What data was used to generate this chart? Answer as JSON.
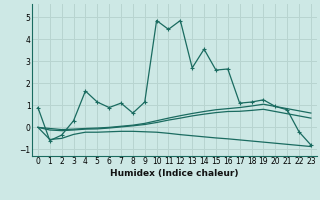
{
  "xlabel": "Humidex (Indice chaleur)",
  "bg_color": "#cde8e5",
  "grid_color": "#b8d4d0",
  "line_color": "#1a6b60",
  "xlim": [
    -0.5,
    23.5
  ],
  "ylim": [
    -1.3,
    5.6
  ],
  "xticks": [
    0,
    1,
    2,
    3,
    4,
    5,
    6,
    7,
    8,
    9,
    10,
    11,
    12,
    13,
    14,
    15,
    16,
    17,
    18,
    19,
    20,
    21,
    22,
    23
  ],
  "yticks": [
    -1,
    0,
    1,
    2,
    3,
    4,
    5
  ],
  "series1_x": [
    0,
    1,
    2,
    3,
    4,
    5,
    6,
    7,
    8,
    9,
    10,
    11,
    12,
    13,
    14,
    15,
    16,
    17,
    18,
    19,
    20,
    21,
    22,
    23
  ],
  "series1_y": [
    0.9,
    -0.6,
    -0.35,
    0.3,
    1.65,
    1.15,
    0.9,
    1.1,
    0.65,
    1.15,
    4.85,
    4.45,
    4.85,
    2.7,
    3.55,
    2.6,
    2.65,
    1.1,
    1.15,
    1.25,
    0.95,
    0.8,
    -0.2,
    -0.8
  ],
  "series2_x": [
    0,
    1,
    2,
    3,
    4,
    5,
    6,
    7,
    8,
    9,
    10,
    11,
    12,
    13,
    14,
    15,
    16,
    17,
    18,
    19,
    20,
    21,
    22,
    23
  ],
  "series2_y": [
    0.0,
    -0.05,
    -0.1,
    -0.08,
    -0.05,
    -0.03,
    0.0,
    0.05,
    0.1,
    0.18,
    0.3,
    0.42,
    0.53,
    0.63,
    0.72,
    0.8,
    0.85,
    0.9,
    0.97,
    1.05,
    0.95,
    0.85,
    0.75,
    0.65
  ],
  "series3_x": [
    0,
    1,
    2,
    3,
    4,
    5,
    6,
    7,
    8,
    9,
    10,
    11,
    12,
    13,
    14,
    15,
    16,
    17,
    18,
    19,
    20,
    21,
    22,
    23
  ],
  "series3_y": [
    0.0,
    -0.12,
    -0.15,
    -0.12,
    -0.08,
    -0.07,
    -0.03,
    0.02,
    0.07,
    0.13,
    0.22,
    0.33,
    0.42,
    0.52,
    0.6,
    0.67,
    0.72,
    0.73,
    0.77,
    0.82,
    0.72,
    0.62,
    0.52,
    0.42
  ],
  "series4_x": [
    0,
    1,
    2,
    3,
    4,
    5,
    6,
    7,
    8,
    9,
    10,
    11,
    12,
    13,
    14,
    15,
    16,
    17,
    18,
    19,
    20,
    21,
    22,
    23
  ],
  "series4_y": [
    0.0,
    -0.55,
    -0.5,
    -0.32,
    -0.22,
    -0.22,
    -0.2,
    -0.18,
    -0.18,
    -0.2,
    -0.22,
    -0.27,
    -0.33,
    -0.38,
    -0.43,
    -0.48,
    -0.52,
    -0.57,
    -0.62,
    -0.67,
    -0.72,
    -0.77,
    -0.82,
    -0.87
  ]
}
